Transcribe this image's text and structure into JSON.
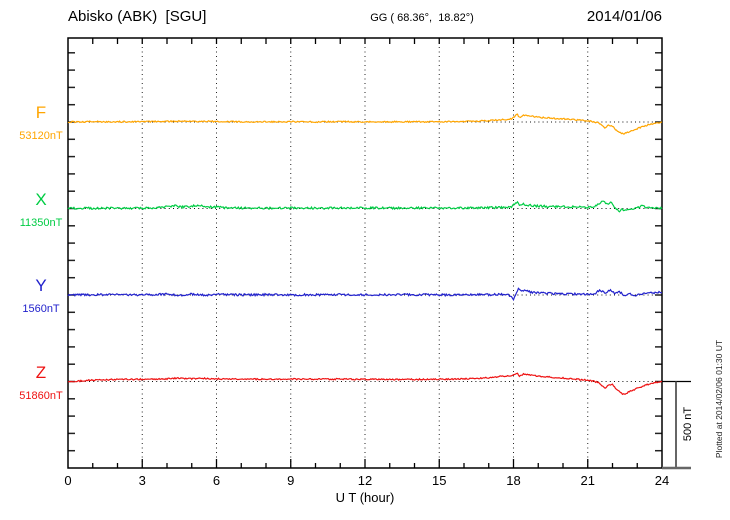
{
  "header": {
    "station": "Abisko (ABK)  [SGU]",
    "coordinates": "GG ( 68.36°,  18.82°)",
    "date": "2014/01/06"
  },
  "footer": {
    "xlabel": "U T (hour)",
    "scale_bar_label": "500 nT",
    "plotted_at": "Plotted at 2014/02/06 01:30 UT"
  },
  "chart_data": {
    "type": "line",
    "title": "Abisko (ABK) [SGU] magnetogram 2014/01/06",
    "xlabel": "U T (hour)",
    "x_range": [
      0,
      24
    ],
    "x_ticks": [
      "0",
      "3",
      "6",
      "9",
      "12",
      "15",
      "18",
      "21",
      "24"
    ],
    "x_tick_values": [
      0,
      3,
      6,
      9,
      12,
      15,
      18,
      21,
      24
    ],
    "grid": "dotted vertical every 3 hours, dotted baseline per component",
    "baseline_spacing_nT": 500,
    "side_tick_interval_nT": 100,
    "scale_bar_nT": 500,
    "series": [
      {
        "name": "F",
        "value_label": "53120nT",
        "baseline_nT": 53120,
        "color": "#FFA500",
        "noise_nT": 4,
        "points": [
          [
            0,
            0
          ],
          [
            1,
            2
          ],
          [
            2,
            1
          ],
          [
            3,
            2
          ],
          [
            4,
            3
          ],
          [
            4.5,
            5
          ],
          [
            5,
            3
          ],
          [
            5.5,
            5
          ],
          [
            6,
            2
          ],
          [
            7,
            2
          ],
          [
            8,
            1
          ],
          [
            9,
            2
          ],
          [
            10,
            1
          ],
          [
            11,
            2
          ],
          [
            12,
            1
          ],
          [
            13,
            1
          ],
          [
            14,
            1
          ],
          [
            15,
            2
          ],
          [
            16,
            3
          ],
          [
            17,
            8
          ],
          [
            17.5,
            13
          ],
          [
            17.9,
            17
          ],
          [
            18.05,
            32
          ],
          [
            18.15,
            46
          ],
          [
            18.25,
            26
          ],
          [
            18.4,
            40
          ],
          [
            18.6,
            36
          ],
          [
            18.9,
            30
          ],
          [
            19.2,
            25
          ],
          [
            19.6,
            21
          ],
          [
            20,
            18
          ],
          [
            20.5,
            13
          ],
          [
            21,
            7
          ],
          [
            21.3,
            0
          ],
          [
            21.5,
            -8
          ],
          [
            21.7,
            -35
          ],
          [
            21.85,
            -18
          ],
          [
            22,
            -25
          ],
          [
            22.2,
            -55
          ],
          [
            22.45,
            -68
          ],
          [
            22.7,
            -55
          ],
          [
            23,
            -38
          ],
          [
            23.3,
            -22
          ],
          [
            23.6,
            -10
          ],
          [
            23.8,
            -5
          ],
          [
            24,
            -3
          ]
        ]
      },
      {
        "name": "X",
        "value_label": "11350nT",
        "baseline_nT": 11350,
        "color": "#00CC44",
        "noise_nT": 6,
        "points": [
          [
            0,
            0
          ],
          [
            0.5,
            3
          ],
          [
            1,
            1
          ],
          [
            2,
            2
          ],
          [
            3,
            1
          ],
          [
            3.5,
            5
          ],
          [
            4,
            10
          ],
          [
            4.3,
            16
          ],
          [
            4.6,
            8
          ],
          [
            5,
            14
          ],
          [
            5.3,
            18
          ],
          [
            5.6,
            10
          ],
          [
            6,
            8
          ],
          [
            6.5,
            4
          ],
          [
            7,
            3
          ],
          [
            8,
            2
          ],
          [
            9,
            3
          ],
          [
            10,
            2
          ],
          [
            11,
            3
          ],
          [
            12,
            3
          ],
          [
            13,
            2
          ],
          [
            14,
            3
          ],
          [
            15,
            2
          ],
          [
            16,
            3
          ],
          [
            17,
            5
          ],
          [
            17.5,
            6
          ],
          [
            17.9,
            8
          ],
          [
            18.05,
            26
          ],
          [
            18.15,
            40
          ],
          [
            18.25,
            16
          ],
          [
            18.4,
            24
          ],
          [
            18.6,
            20
          ],
          [
            19,
            14
          ],
          [
            19.5,
            11
          ],
          [
            20,
            11
          ],
          [
            20.5,
            9
          ],
          [
            21,
            7
          ],
          [
            21.3,
            12
          ],
          [
            21.5,
            32
          ],
          [
            21.65,
            46
          ],
          [
            21.8,
            22
          ],
          [
            21.95,
            36
          ],
          [
            22.1,
            6
          ],
          [
            22.25,
            -16
          ],
          [
            22.4,
            -6
          ],
          [
            22.6,
            -10
          ],
          [
            22.8,
            -4
          ],
          [
            23,
            2
          ],
          [
            23.2,
            16
          ],
          [
            23.4,
            6
          ],
          [
            23.6,
            2
          ],
          [
            23.8,
            4
          ],
          [
            24,
            2
          ]
        ]
      },
      {
        "name": "Y",
        "value_label": "1560nT",
        "baseline_nT": 1560,
        "color": "#2222CC",
        "noise_nT": 6,
        "points": [
          [
            0,
            0
          ],
          [
            1,
            1
          ],
          [
            2,
            2
          ],
          [
            3,
            1
          ],
          [
            4,
            5
          ],
          [
            4.5,
            -4
          ],
          [
            5,
            5
          ],
          [
            5.5,
            -2
          ],
          [
            6,
            3
          ],
          [
            7,
            1
          ],
          [
            8,
            2
          ],
          [
            9,
            1
          ],
          [
            10,
            1
          ],
          [
            11,
            2
          ],
          [
            12,
            1
          ],
          [
            13,
            1
          ],
          [
            14,
            2
          ],
          [
            15,
            1
          ],
          [
            16,
            1
          ],
          [
            17,
            2
          ],
          [
            17.8,
            4
          ],
          [
            18,
            -28
          ],
          [
            18.1,
            12
          ],
          [
            18.2,
            38
          ],
          [
            18.35,
            22
          ],
          [
            18.5,
            27
          ],
          [
            18.7,
            16
          ],
          [
            19,
            11
          ],
          [
            19.5,
            9
          ],
          [
            20,
            6
          ],
          [
            20.5,
            5
          ],
          [
            21,
            4
          ],
          [
            21.3,
            10
          ],
          [
            21.5,
            27
          ],
          [
            21.7,
            12
          ],
          [
            21.9,
            30
          ],
          [
            22.1,
            9
          ],
          [
            22.3,
            17
          ],
          [
            22.5,
            -6
          ],
          [
            22.7,
            6
          ],
          [
            22.9,
            -9
          ],
          [
            23.1,
            4
          ],
          [
            23.4,
            11
          ],
          [
            23.7,
            13
          ],
          [
            24,
            15
          ]
        ]
      },
      {
        "name": "Z",
        "value_label": "51860nT",
        "baseline_nT": 51860,
        "color": "#EE1111",
        "noise_nT": 4,
        "points": [
          [
            0,
            -3
          ],
          [
            0.5,
            3
          ],
          [
            1,
            8
          ],
          [
            2,
            12
          ],
          [
            3,
            13
          ],
          [
            4,
            15
          ],
          [
            4.5,
            20
          ],
          [
            5,
            15
          ],
          [
            5.5,
            19
          ],
          [
            6,
            15
          ],
          [
            7,
            15
          ],
          [
            8,
            13
          ],
          [
            9,
            14
          ],
          [
            10,
            13
          ],
          [
            11,
            14
          ],
          [
            12,
            12
          ],
          [
            13,
            12
          ],
          [
            14,
            12
          ],
          [
            15,
            13
          ],
          [
            16,
            15
          ],
          [
            17,
            22
          ],
          [
            17.5,
            30
          ],
          [
            17.9,
            35
          ],
          [
            18.05,
            40
          ],
          [
            18.15,
            48
          ],
          [
            18.25,
            30
          ],
          [
            18.4,
            42
          ],
          [
            18.6,
            38
          ],
          [
            18.9,
            32
          ],
          [
            19.2,
            28
          ],
          [
            19.6,
            24
          ],
          [
            20,
            20
          ],
          [
            20.5,
            14
          ],
          [
            21,
            7
          ],
          [
            21.3,
            0
          ],
          [
            21.5,
            -12
          ],
          [
            21.7,
            -40
          ],
          [
            21.85,
            -22
          ],
          [
            22,
            -18
          ],
          [
            22.2,
            -50
          ],
          [
            22.45,
            -75
          ],
          [
            22.7,
            -58
          ],
          [
            23,
            -40
          ],
          [
            23.3,
            -22
          ],
          [
            23.6,
            -10
          ],
          [
            23.8,
            -4
          ],
          [
            24,
            0
          ]
        ]
      }
    ]
  }
}
